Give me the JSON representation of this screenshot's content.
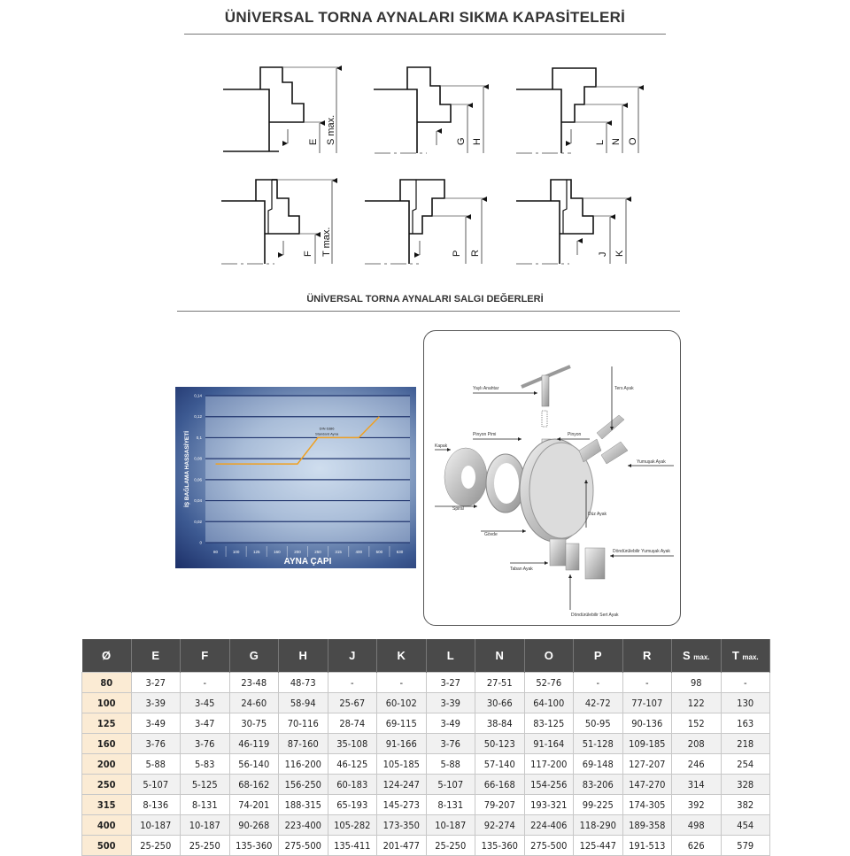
{
  "titles": {
    "main": "ÜNİVERSAL TORNA AYNALARI SIKMA KAPASİTELERİ",
    "runout": "ÜNİVERSAL TORNA AYNALARI SALGI DEĞERLERİ"
  },
  "diagram_labels": {
    "d1": [
      "E",
      "S max."
    ],
    "d2": [
      "G",
      "H"
    ],
    "d3": [
      "L",
      "N",
      "O"
    ],
    "d4": [
      "F",
      "T max."
    ],
    "d5": [
      "P",
      "R"
    ],
    "d6": [
      "J",
      "K"
    ]
  },
  "chart_data": {
    "type": "line",
    "title": "",
    "xlabel": "AYNA ÇAPI",
    "ylabel": "İŞ BAĞLAMA HASSASİYETİ",
    "categories": [
      "80",
      "100",
      "125",
      "160",
      "200",
      "250",
      "315",
      "400",
      "500",
      "630"
    ],
    "yticks": [
      "0",
      "0,02",
      "0,04",
      "0,06",
      "0,08",
      "0,1",
      "0,12",
      "0,14"
    ],
    "ylim": [
      0,
      0.14
    ],
    "grid": true,
    "line_color": "#f0a020",
    "series": [
      {
        "points": [
          [
            "80",
            0.075
          ],
          [
            "200",
            0.075
          ],
          [
            "250",
            0.1
          ],
          [
            "400",
            0.1
          ],
          [
            "500",
            0.12
          ]
        ]
      }
    ],
    "annotation": [
      "DIN 6386",
      "Standard Ayna"
    ]
  },
  "parts": [
    "Yaylı Anahtar",
    "Ters Ayak",
    "Pinyon Pimi",
    "Pinyon",
    "Kapak",
    "Yumuşak Ayak",
    "Spiral",
    "Düz Ayak",
    "Gövde",
    "Döndürülebilir Yumuşak Ayak",
    "Taban Ayak",
    "Döndürülebilir Sert Ayak"
  ],
  "table": {
    "headers": [
      "Ø",
      "E",
      "F",
      "G",
      "H",
      "J",
      "K",
      "L",
      "N",
      "O",
      "P",
      "R",
      "S",
      "T"
    ],
    "header_suffix": {
      "S": "max.",
      "T": "max."
    },
    "rows": [
      [
        "80",
        "3-27",
        "-",
        "23-48",
        "48-73",
        "-",
        "-",
        "3-27",
        "27-51",
        "52-76",
        "-",
        "-",
        "98",
        "-"
      ],
      [
        "100",
        "3-39",
        "3-45",
        "24-60",
        "58-94",
        "25-67",
        "60-102",
        "3-39",
        "30-66",
        "64-100",
        "42-72",
        "77-107",
        "122",
        "130"
      ],
      [
        "125",
        "3-49",
        "3-47",
        "30-75",
        "70-116",
        "28-74",
        "69-115",
        "3-49",
        "38-84",
        "83-125",
        "50-95",
        "90-136",
        "152",
        "163"
      ],
      [
        "160",
        "3-76",
        "3-76",
        "46-119",
        "87-160",
        "35-108",
        "91-166",
        "3-76",
        "50-123",
        "91-164",
        "51-128",
        "109-185",
        "208",
        "218"
      ],
      [
        "200",
        "5-88",
        "5-83",
        "56-140",
        "116-200",
        "46-125",
        "105-185",
        "5-88",
        "57-140",
        "117-200",
        "69-148",
        "127-207",
        "246",
        "254"
      ],
      [
        "250",
        "5-107",
        "5-125",
        "68-162",
        "156-250",
        "60-183",
        "124-247",
        "5-107",
        "66-168",
        "154-256",
        "83-206",
        "147-270",
        "314",
        "328"
      ],
      [
        "315",
        "8-136",
        "8-131",
        "74-201",
        "188-315",
        "65-193",
        "145-273",
        "8-131",
        "79-207",
        "193-321",
        "99-225",
        "174-305",
        "392",
        "382"
      ],
      [
        "400",
        "10-187",
        "10-187",
        "90-268",
        "223-400",
        "105-282",
        "173-350",
        "10-187",
        "92-274",
        "224-406",
        "118-290",
        "189-358",
        "498",
        "454"
      ],
      [
        "500",
        "25-250",
        "25-250",
        "135-360",
        "275-500",
        "135-411",
        "201-477",
        "25-250",
        "135-360",
        "275-500",
        "125-447",
        "191-513",
        "626",
        "579"
      ]
    ]
  }
}
